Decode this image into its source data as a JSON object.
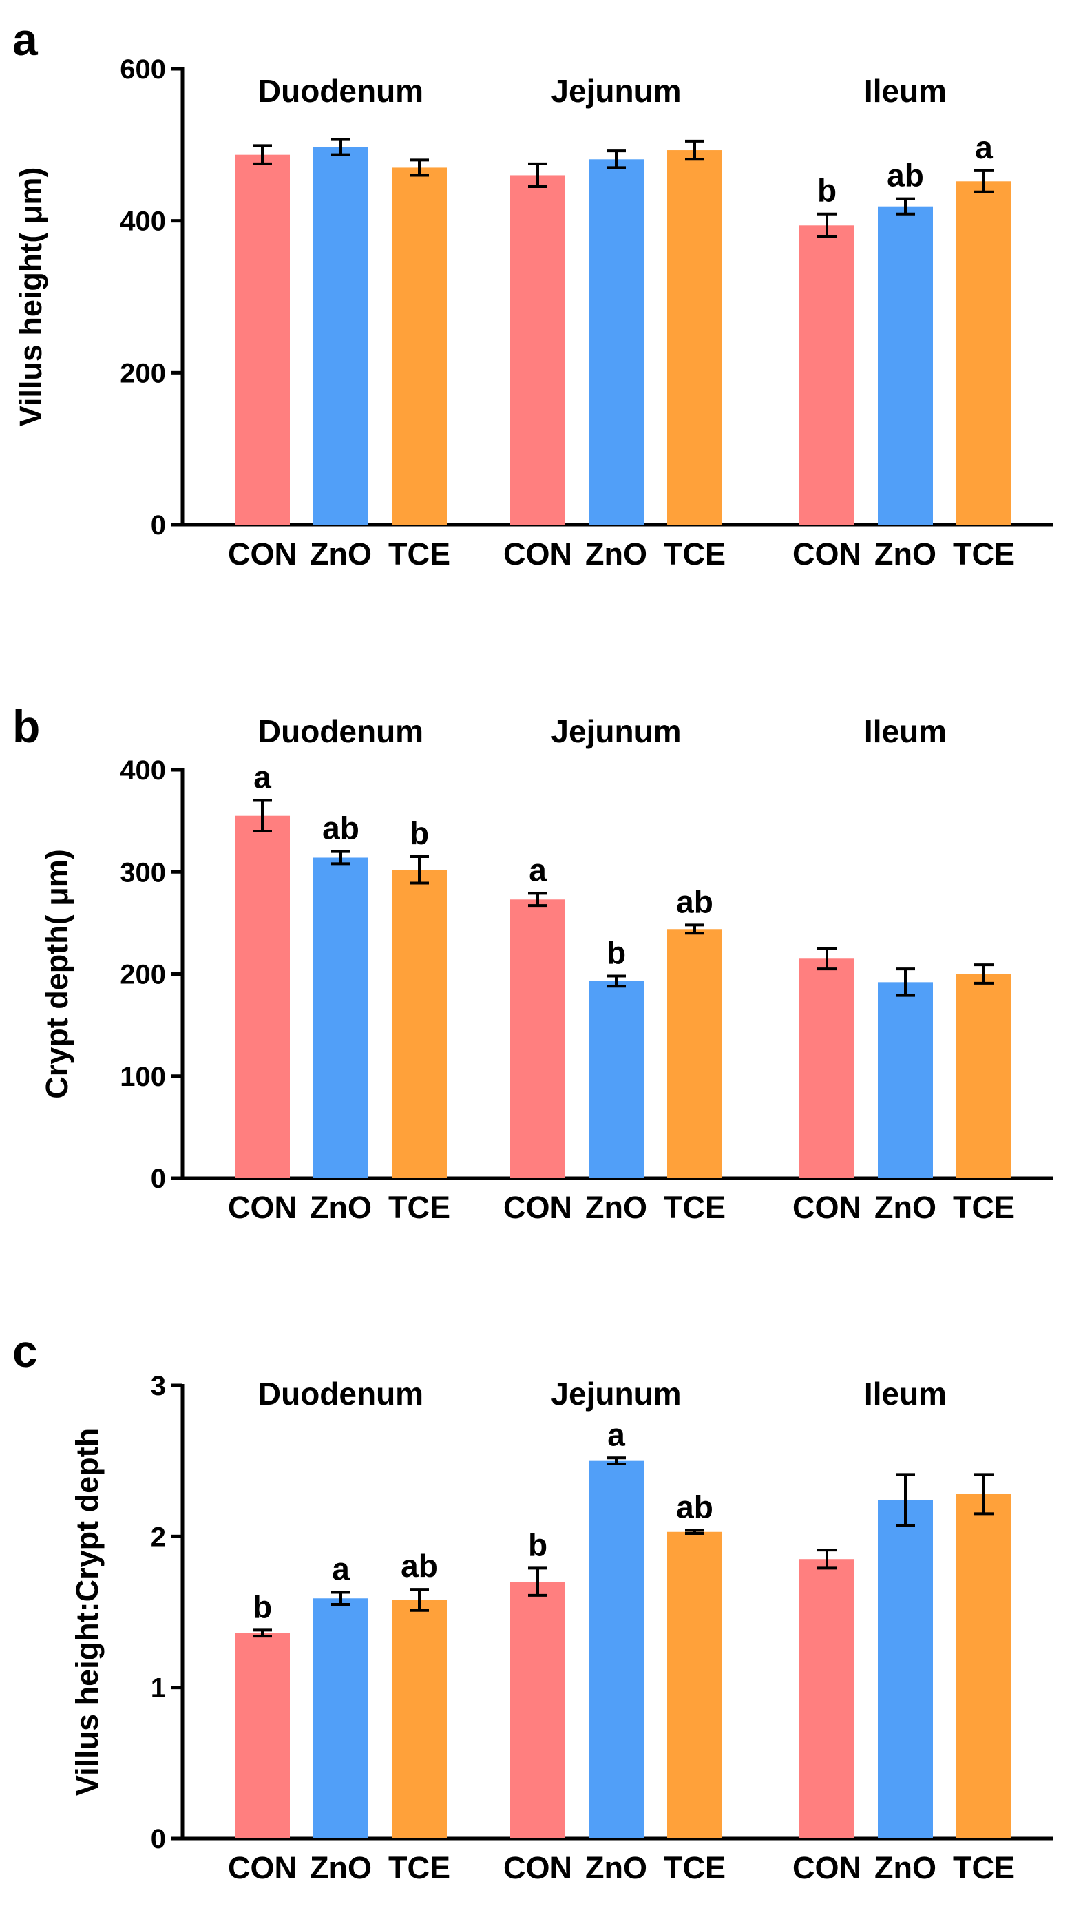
{
  "colors": {
    "CON": "#FF7F7F",
    "ZnO": "#519FF8",
    "TCE": "#FFA13A",
    "axis": "#000000"
  },
  "chart_data": [
    {
      "type": "bar",
      "panel": "a",
      "ylabel": "Villus height( μm)",
      "ylim": [
        0,
        600
      ],
      "yticks": [
        0,
        200,
        400,
        600
      ],
      "groups": [
        {
          "name": "Duodenum",
          "bars": [
            {
              "category": "CON",
              "value": 487,
              "error": 12,
              "letter": ""
            },
            {
              "category": "ZnO",
              "value": 497,
              "error": 10,
              "letter": ""
            },
            {
              "category": "TCE",
              "value": 470,
              "error": 10,
              "letter": ""
            }
          ]
        },
        {
          "name": "Jejunum",
          "bars": [
            {
              "category": "CON",
              "value": 460,
              "error": 15,
              "letter": ""
            },
            {
              "category": "ZnO",
              "value": 481,
              "error": 11,
              "letter": ""
            },
            {
              "category": "TCE",
              "value": 493,
              "error": 12,
              "letter": ""
            }
          ]
        },
        {
          "name": "Ileum",
          "bars": [
            {
              "category": "CON",
              "value": 394,
              "error": 15,
              "letter": "b"
            },
            {
              "category": "ZnO",
              "value": 419,
              "error": 10,
              "letter": "ab"
            },
            {
              "category": "TCE",
              "value": 452,
              "error": 14,
              "letter": "a"
            }
          ]
        }
      ]
    },
    {
      "type": "bar",
      "panel": "b",
      "ylabel": "Crypt depth( μm)",
      "ylim": [
        0,
        400
      ],
      "yticks": [
        0,
        100,
        200,
        300,
        400
      ],
      "groups": [
        {
          "name": "Duodenum",
          "bars": [
            {
              "category": "CON",
              "value": 355,
              "error": 15,
              "letter": "a"
            },
            {
              "category": "ZnO",
              "value": 314,
              "error": 6,
              "letter": "ab"
            },
            {
              "category": "TCE",
              "value": 302,
              "error": 13,
              "letter": "b"
            }
          ]
        },
        {
          "name": "Jejunum",
          "bars": [
            {
              "category": "CON",
              "value": 273,
              "error": 6,
              "letter": "a"
            },
            {
              "category": "ZnO",
              "value": 193,
              "error": 5,
              "letter": "b"
            },
            {
              "category": "TCE",
              "value": 244,
              "error": 4,
              "letter": "ab"
            }
          ]
        },
        {
          "name": "Ileum",
          "bars": [
            {
              "category": "CON",
              "value": 215,
              "error": 10,
              "letter": ""
            },
            {
              "category": "ZnO",
              "value": 192,
              "error": 13,
              "letter": ""
            },
            {
              "category": "TCE",
              "value": 200,
              "error": 9,
              "letter": ""
            }
          ]
        }
      ]
    },
    {
      "type": "bar",
      "panel": "c",
      "ylabel": "Villus height:Crypt depth",
      "ylim": [
        0,
        3
      ],
      "yticks": [
        0,
        1,
        2,
        3
      ],
      "groups": [
        {
          "name": "Duodenum",
          "bars": [
            {
              "category": "CON",
              "value": 1.36,
              "error": 0.02,
              "letter": "b"
            },
            {
              "category": "ZnO",
              "value": 1.59,
              "error": 0.04,
              "letter": "a"
            },
            {
              "category": "TCE",
              "value": 1.58,
              "error": 0.07,
              "letter": "ab"
            }
          ]
        },
        {
          "name": "Jejunum",
          "bars": [
            {
              "category": "CON",
              "value": 1.7,
              "error": 0.09,
              "letter": "b"
            },
            {
              "category": "ZnO",
              "value": 2.5,
              "error": 0.02,
              "letter": "a"
            },
            {
              "category": "TCE",
              "value": 2.03,
              "error": 0.01,
              "letter": "ab"
            }
          ]
        },
        {
          "name": "Ileum",
          "bars": [
            {
              "category": "CON",
              "value": 1.85,
              "error": 0.06,
              "letter": ""
            },
            {
              "category": "ZnO",
              "value": 2.24,
              "error": 0.17,
              "letter": ""
            },
            {
              "category": "TCE",
              "value": 2.28,
              "error": 0.13,
              "letter": ""
            }
          ]
        }
      ]
    }
  ]
}
